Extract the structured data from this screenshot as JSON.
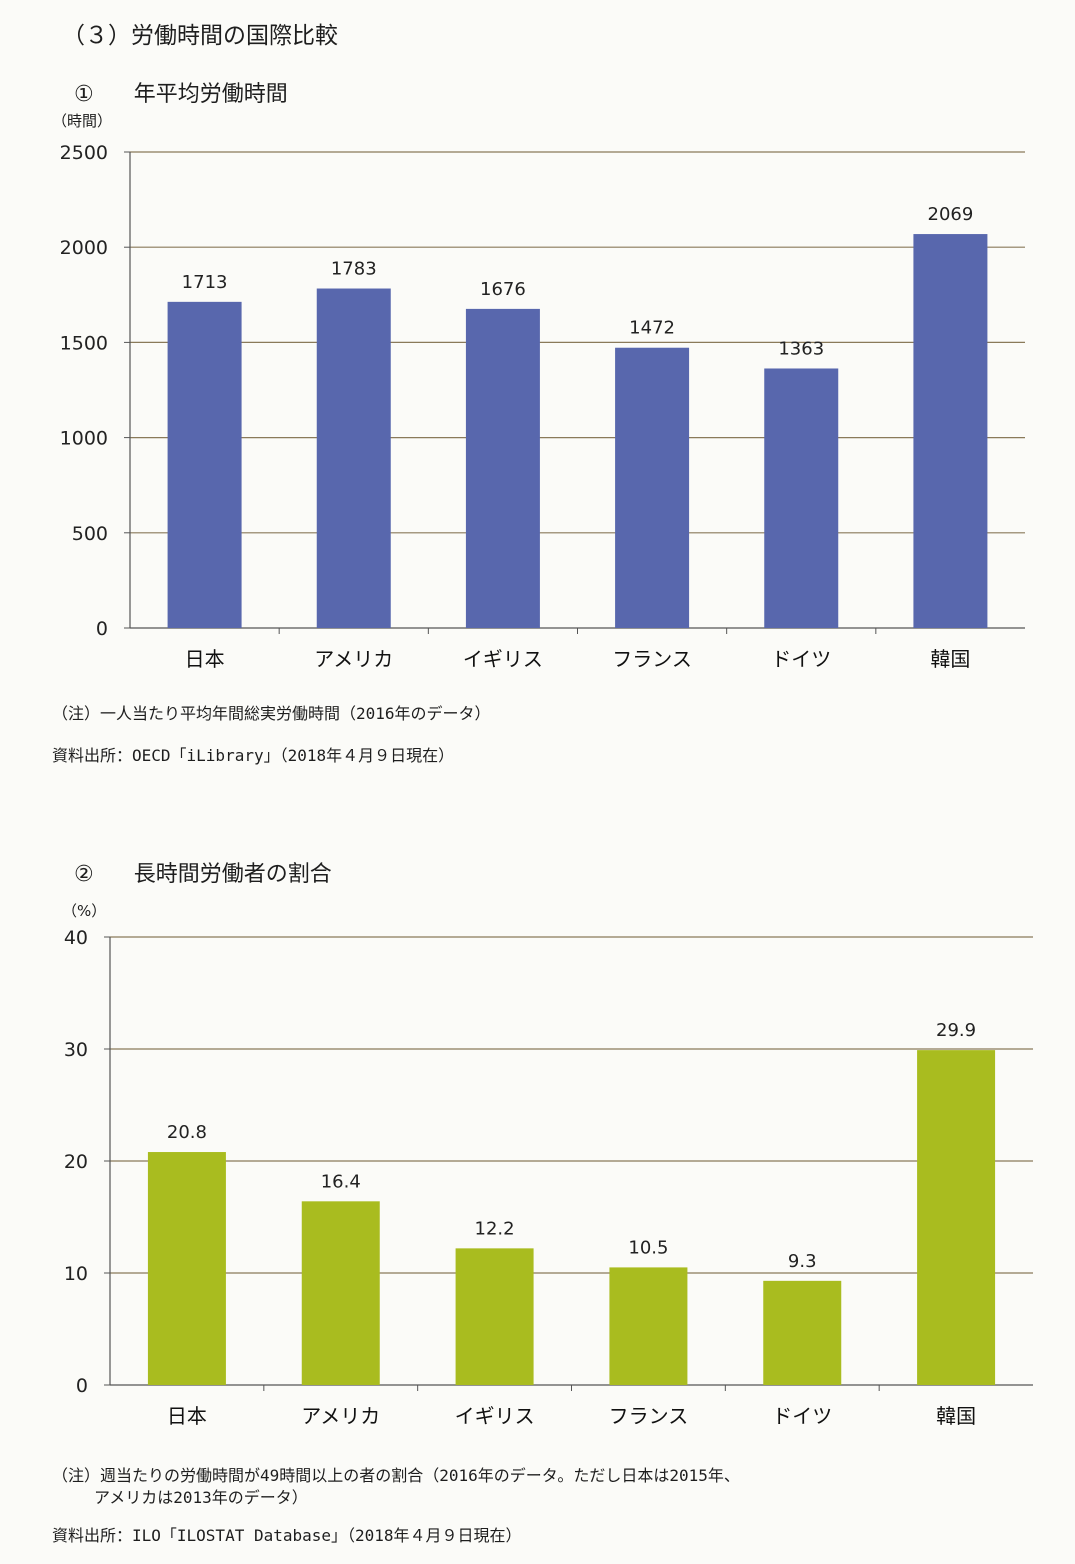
{
  "section_title": "（３）労働時間の国際比較",
  "chart1": {
    "heading_num": "①",
    "heading_text": "年平均労働時間",
    "unit": "（時間）",
    "note": "（注）一人当たり平均年間総実労働時間（2016年のデータ）",
    "source": "資料出所：OECD「iLibrary」（2018年４月９日現在）"
  },
  "chart2": {
    "heading_num": "②",
    "heading_text": "長時間労働者の割合",
    "unit": "（%）",
    "note_line1": "（注）週当たりの労働時間が49時間以上の者の割合（2016年のデータ。ただし日本は2015年、",
    "note_line2": "アメリカは2013年のデータ）",
    "source": "資料出所：ILO「ILOSTAT Database」（2018年４月９日現在）"
  },
  "colors": {
    "chart1_bar": "#5867ad",
    "chart2_bar": "#a9bc1f",
    "gridline": "#8a7a5a"
  },
  "chart_data": [
    {
      "type": "bar",
      "title": "年平均労働時間",
      "ylabel": "（時間）",
      "categories": [
        "日本",
        "アメリカ",
        "イギリス",
        "フランス",
        "ドイツ",
        "韓国"
      ],
      "values": [
        1713,
        1783,
        1676,
        1472,
        1363,
        2069
      ],
      "ylim": [
        0,
        2500
      ],
      "yticks": [
        0,
        500,
        1000,
        1500,
        2000,
        2500
      ],
      "grid": true,
      "data_labels": true
    },
    {
      "type": "bar",
      "title": "長時間労働者の割合",
      "ylabel": "（%）",
      "categories": [
        "日本",
        "アメリカ",
        "イギリス",
        "フランス",
        "ドイツ",
        "韓国"
      ],
      "values": [
        20.8,
        16.4,
        12.2,
        10.5,
        9.3,
        29.9
      ],
      "ylim": [
        0,
        40
      ],
      "yticks": [
        0,
        10,
        20,
        30,
        40
      ],
      "grid": true,
      "data_labels": true
    }
  ]
}
